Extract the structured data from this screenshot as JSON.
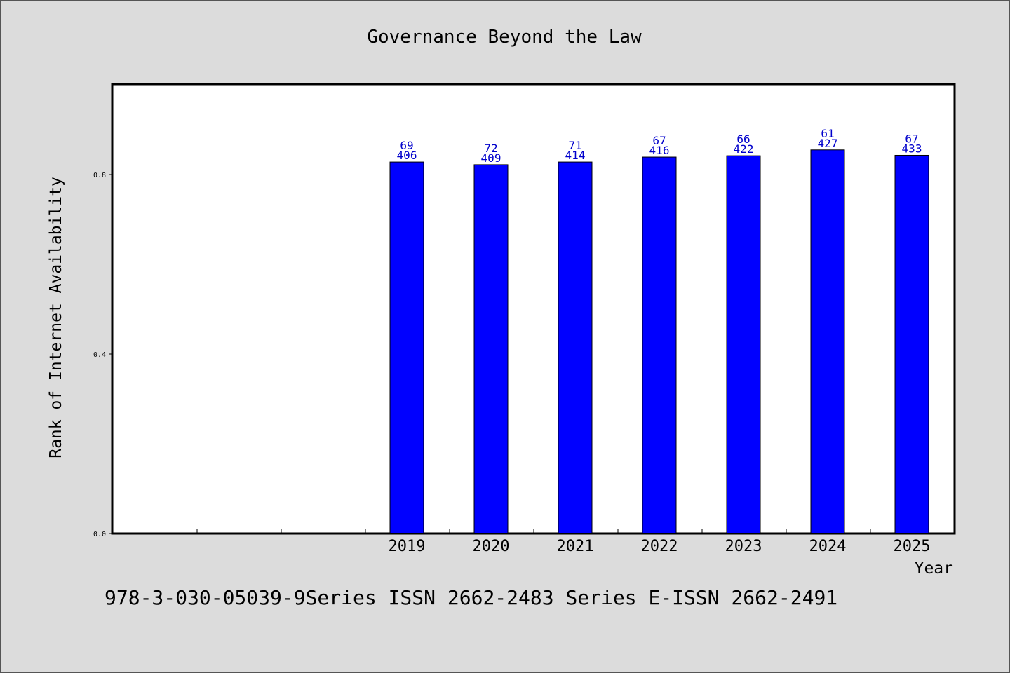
{
  "chart_data": {
    "type": "bar",
    "title": "Governance Beyond the Law",
    "xlabel": "Year",
    "ylabel": "Rank of Internet Availability",
    "footer": "978-3-030-05039-9Series ISSN 2662-2483 Series E-ISSN 2662-2491",
    "x_slots": 10,
    "ylim": [
      0,
      1.0
    ],
    "yticks": [
      {
        "value": 0.0,
        "label": "0.0"
      },
      {
        "value": 0.4,
        "label": "0.4"
      },
      {
        "value": 0.8,
        "label": "0.8"
      }
    ],
    "categories": [
      "2019",
      "2020",
      "2021",
      "2022",
      "2023",
      "2024",
      "2025"
    ],
    "category_slots": [
      3,
      4,
      5,
      6,
      7,
      8,
      9
    ],
    "values": [
      0.828,
      0.822,
      0.828,
      0.839,
      0.842,
      0.855,
      0.843
    ],
    "labels_top": [
      "69",
      "72",
      "71",
      "67",
      "66",
      "61",
      "67"
    ],
    "labels_bottom": [
      "406",
      "409",
      "414",
      "416",
      "422",
      "427",
      "433"
    ],
    "bar_color": "#0000ff",
    "label_color": "#0000cc",
    "grid": false,
    "legend": "none"
  }
}
